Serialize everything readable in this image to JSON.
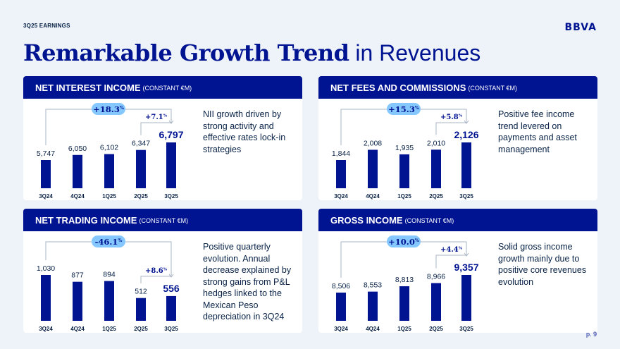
{
  "header": {
    "section_label": "3Q25 EARNINGS",
    "logo_text": "BBVA",
    "page_number": "p. 9"
  },
  "title": {
    "bold": "Remarkable Growth Trend",
    "light": " in Revenues"
  },
  "chart_data": [
    {
      "type": "bar",
      "title": "NET INTEREST INCOME",
      "unit": "(CONSTANT €M)",
      "categories": [
        "3Q24",
        "4Q24",
        "1Q25",
        "2Q25",
        "3Q25"
      ],
      "values": [
        5747,
        6050,
        6102,
        6347,
        6797
      ],
      "value_labels": [
        "5,747",
        "6,050",
        "6,102",
        "6,347",
        "6,797"
      ],
      "yoy_change": "+18.3%",
      "qoq_change": "+7.1%",
      "description": "NII growth driven by strong activity and effective rates lock-in strategies"
    },
    {
      "type": "bar",
      "title": "NET FEES AND COMMISSIONS",
      "unit": "(CONSTANT €M)",
      "categories": [
        "3Q24",
        "4Q24",
        "1Q25",
        "2Q25",
        "3Q25"
      ],
      "values": [
        1844,
        2008,
        1935,
        2010,
        2126
      ],
      "value_labels": [
        "1,844",
        "2,008",
        "1,935",
        "2,010",
        "2,126"
      ],
      "yoy_change": "+15.3%",
      "qoq_change": "+5.8%",
      "description": "Positive fee income trend levered on payments and asset management"
    },
    {
      "type": "bar",
      "title": "NET TRADING INCOME",
      "unit": "(CONSTANT €M)",
      "categories": [
        "3Q24",
        "4Q24",
        "1Q25",
        "2Q25",
        "3Q25"
      ],
      "values": [
        1030,
        877,
        894,
        512,
        556
      ],
      "value_labels": [
        "1,030",
        "877",
        "894",
        "512",
        "556"
      ],
      "yoy_change": "-46.1%",
      "qoq_change": "+8.6%",
      "description": "Positive quarterly evolution. Annual decrease explained by strong gains from P&L hedges linked to the Mexican Peso depreciation in 3Q24"
    },
    {
      "type": "bar",
      "title": "GROSS INCOME",
      "unit": "(CONSTANT €M)",
      "categories": [
        "3Q24",
        "4Q24",
        "1Q25",
        "2Q25",
        "3Q25"
      ],
      "values": [
        8506,
        8553,
        8813,
        8966,
        9357
      ],
      "value_labels": [
        "8,506",
        "8,553",
        "8,813",
        "8,966",
        "9,357"
      ],
      "yoy_change": "+10.0%",
      "qoq_change": "+4.4%",
      "description": "Solid gross income growth mainly due to positive core revenues evolution"
    }
  ],
  "colors": {
    "brand_navy": "#001391",
    "bar_blue": "#001391",
    "text_dark": "#072146",
    "badge_fill": "#85c8ff",
    "arrow_grey": "#a9b4c4"
  }
}
